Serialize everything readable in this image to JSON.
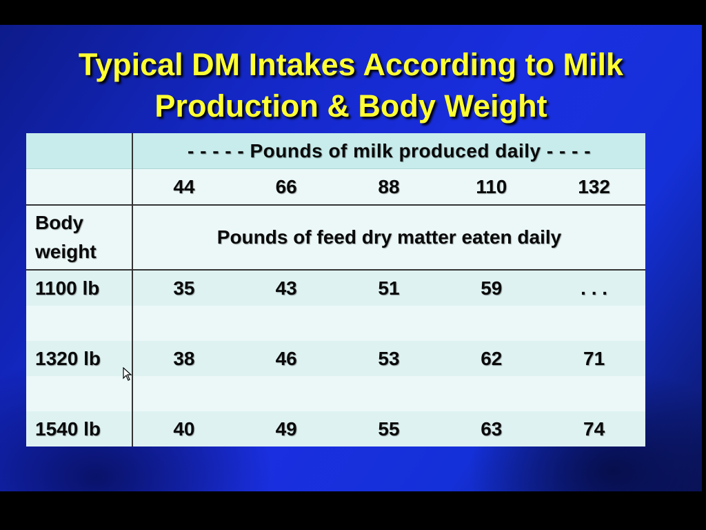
{
  "slide": {
    "title_line1": "Typical DM Intakes According to Milk",
    "title_line2": "Production & Body Weight"
  },
  "table": {
    "span_header": "- - - - - Pounds  of milk  produced  daily  - - - -",
    "milk_values": [
      "44",
      "66",
      "88",
      "110",
      "132"
    ],
    "row_header_label": "Body weight",
    "row_header_label_line1": "Body",
    "row_header_label_line2": "weight",
    "subheader": "Pounds  of feed  dry  matter  eaten  daily",
    "rows": [
      {
        "weight": "1100  lb",
        "values": [
          "35",
          "43",
          "51",
          "59",
          ". . ."
        ]
      },
      {
        "weight": "1320  lb",
        "values": [
          "38",
          "46",
          "53",
          "62",
          "71"
        ]
      },
      {
        "weight": "1540  lb",
        "values": [
          "40",
          "49",
          "55",
          "63",
          "74"
        ]
      }
    ]
  },
  "colors": {
    "title": "#ffff33",
    "background": "#1a2fe0",
    "table_header": "#c8ecec",
    "table_body": "#ecf8f8"
  },
  "icons": [
    "back-arrow-icon",
    "pen-icon",
    "menu-icon",
    "forward-arrow-icon",
    "mouse-cursor-icon"
  ]
}
